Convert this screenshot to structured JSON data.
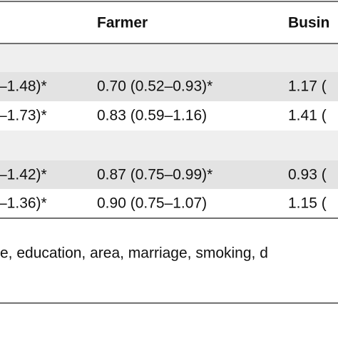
{
  "table": {
    "header": [
      "Farmer",
      "Busin"
    ],
    "rows": [
      [
        "–1.48)*",
        "0.70 (0.52–0.93)*",
        "1.17 ("
      ],
      [
        "–1.73)*",
        "0.83 (0.59–1.16)",
        "1.41 ("
      ],
      [
        "–1.42)*",
        "0.87 (0.75–0.99)*",
        "0.93 ("
      ],
      [
        "–1.36)*",
        "0.90 (0.75–1.07)",
        "1.15 ("
      ]
    ],
    "footnote": "e, education, area, marriage, smoking, d"
  }
}
